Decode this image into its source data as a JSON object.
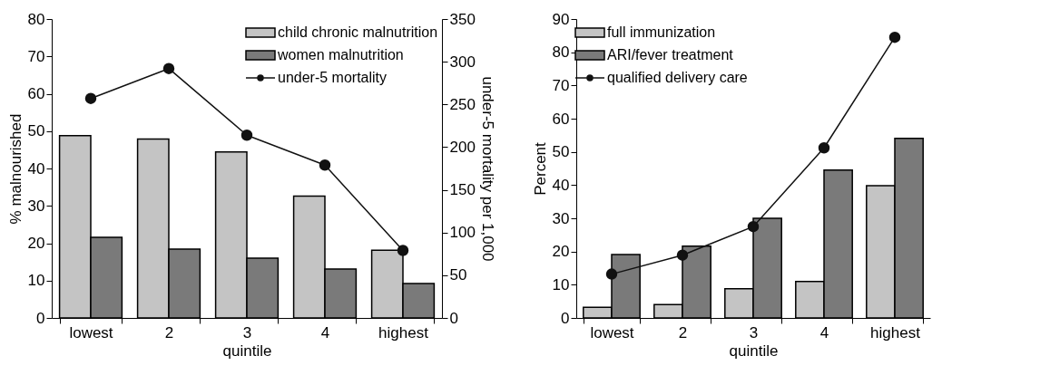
{
  "chart_data": [
    {
      "type": "bar",
      "xlabel": "quintile",
      "ylabel": "% malnourished",
      "y2label": "under-5 mortality per 1,000",
      "categories": [
        "lowest",
        "2",
        "3",
        "4",
        "highest"
      ],
      "series": [
        {
          "name": "child chronic malnutrition",
          "color": "#c4c4c4",
          "values": [
            48.8,
            47.9,
            44.4,
            32.6,
            18.1
          ]
        },
        {
          "name": "women malnutrition",
          "color": "#7a7a7a",
          "values": [
            21.6,
            18.4,
            16.0,
            13.1,
            9.2
          ]
        },
        {
          "name": "under-5 mortality",
          "type": "line",
          "axis": "y2",
          "color": "#111111",
          "marker": "circle",
          "values": [
            257,
            292,
            214,
            179,
            79
          ]
        }
      ],
      "ylim": [
        0,
        80
      ],
      "yticks": [
        0,
        10,
        20,
        30,
        40,
        50,
        60,
        70,
        80
      ],
      "y2lim": [
        0,
        350
      ],
      "y2ticks": [
        0,
        50,
        100,
        150,
        200,
        250,
        300,
        350
      ],
      "legend": "top right"
    },
    {
      "type": "bar",
      "xlabel": "quintile",
      "ylabel": "Percent",
      "categories": [
        "lowest",
        "2",
        "3",
        "4",
        "highest"
      ],
      "series": [
        {
          "name": "full immunization",
          "color": "#c4c4c4",
          "values": [
            3.2,
            4.0,
            8.8,
            11.0,
            39.8
          ]
        },
        {
          "name": "ARI/fever treatment",
          "color": "#7a7a7a",
          "values": [
            19.1,
            21.6,
            30.0,
            44.5,
            54.1
          ]
        },
        {
          "name": "qualified delivery care",
          "type": "line",
          "color": "#111111",
          "marker": "circle",
          "values": [
            13.2,
            18.9,
            27.5,
            51.2,
            84.5
          ]
        }
      ],
      "ylim": [
        0,
        90
      ],
      "yticks": [
        0,
        10,
        20,
        30,
        40,
        50,
        60,
        70,
        80,
        90
      ],
      "legend": "top left"
    }
  ]
}
